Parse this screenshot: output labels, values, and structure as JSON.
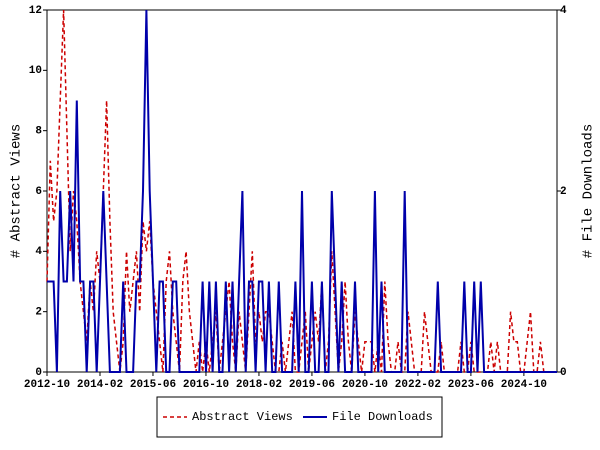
{
  "chart_data": {
    "type": "line",
    "categories": [
      "2012-10",
      null,
      null,
      null,
      null,
      null,
      null,
      null,
      null,
      null,
      null,
      null,
      null,
      null,
      null,
      null,
      "2014-02",
      null,
      null,
      null,
      null,
      null,
      null,
      null,
      null,
      null,
      null,
      null,
      null,
      null,
      null,
      null,
      "2015-06",
      null,
      null,
      null,
      null,
      null,
      null,
      null,
      null,
      null,
      null,
      null,
      null,
      null,
      null,
      null,
      "2016-10",
      null,
      null,
      null,
      null,
      null,
      null,
      null,
      null,
      null,
      null,
      null,
      null,
      null,
      null,
      null,
      "2018-02",
      null,
      null,
      null,
      null,
      null,
      null,
      null,
      null,
      null,
      null,
      null,
      null,
      null,
      null,
      null,
      "2019-06",
      null,
      null,
      null,
      null,
      null,
      null,
      null,
      null,
      null,
      null,
      null,
      null,
      null,
      null,
      null,
      "2020-10",
      null,
      null,
      null,
      null,
      null,
      null,
      null,
      null,
      null,
      null,
      null,
      null,
      null,
      null,
      null,
      "2022-02",
      null,
      null,
      null,
      null,
      null,
      null,
      null,
      null,
      null,
      null,
      null,
      null,
      null,
      null,
      null,
      "2023-06",
      null,
      null,
      null,
      null,
      null,
      null,
      null,
      null,
      null,
      null,
      null,
      null,
      null,
      null,
      null,
      "2024-10",
      null,
      null,
      null,
      null,
      null,
      null,
      null,
      null,
      null,
      null
    ],
    "series": [
      {
        "name": "Abstract Views",
        "color": "#cc0000",
        "dash": true,
        "axis": "y",
        "values": [
          3,
          7,
          5,
          6,
          9,
          12,
          8,
          4,
          6,
          5,
          3,
          2,
          1,
          3,
          2,
          4,
          3,
          6,
          9,
          5,
          2,
          1,
          0,
          1,
          4,
          2,
          3,
          4,
          2,
          5,
          4,
          5,
          3,
          2,
          1,
          0,
          3,
          4,
          2,
          1,
          0,
          3,
          4,
          2,
          1,
          0,
          1,
          0,
          1,
          0,
          1,
          2,
          0,
          1,
          2,
          3,
          1,
          0,
          2,
          1,
          0,
          2,
          4,
          1,
          2,
          1,
          2,
          2,
          1,
          0,
          0,
          1,
          0,
          1,
          2,
          0,
          0,
          1,
          2,
          0,
          1,
          2,
          1,
          3,
          0,
          1,
          4,
          2,
          0,
          1,
          3,
          1,
          0,
          2,
          1,
          0,
          1,
          1,
          1,
          0,
          1,
          0,
          3,
          1,
          0,
          0,
          1,
          0,
          0,
          2,
          1,
          0,
          0,
          0,
          2,
          1,
          0,
          0,
          0,
          1,
          0,
          0,
          0,
          0,
          0,
          1,
          0,
          0,
          1,
          0,
          0,
          0,
          0,
          0,
          1,
          0,
          1,
          0,
          0,
          0,
          2,
          1,
          1,
          0,
          0,
          1,
          2,
          0,
          0,
          1,
          0,
          0,
          0,
          0,
          0
        ]
      },
      {
        "name": "File Downloads",
        "color": "#0000aa",
        "dash": false,
        "axis": "y2",
        "values": [
          1,
          1,
          1,
          0,
          2,
          1,
          1,
          2,
          1,
          3,
          1,
          1,
          0,
          1,
          1,
          0,
          1,
          2,
          1,
          0,
          0,
          0,
          0,
          1,
          0,
          0,
          0,
          1,
          1,
          2,
          4,
          2,
          1,
          0,
          1,
          1,
          0,
          0,
          1,
          1,
          0,
          0,
          0,
          0,
          0,
          0,
          0,
          1,
          0,
          1,
          0,
          1,
          0,
          0,
          1,
          0,
          1,
          0,
          1,
          2,
          0,
          1,
          1,
          0,
          1,
          1,
          0,
          1,
          0,
          0,
          1,
          0,
          0,
          0,
          0,
          1,
          0,
          2,
          0,
          0,
          1,
          0,
          0,
          1,
          0,
          0,
          2,
          1,
          0,
          1,
          0,
          0,
          0,
          1,
          0,
          0,
          0,
          0,
          0,
          2,
          0,
          1,
          0,
          0,
          0,
          0,
          0,
          0,
          2,
          0,
          0,
          0,
          0,
          0,
          0,
          0,
          0,
          0,
          1,
          0,
          0,
          0,
          0,
          0,
          0,
          0,
          1,
          0,
          0,
          1,
          0,
          1,
          0,
          0,
          0,
          0,
          0,
          0,
          0,
          0,
          0,
          0,
          0,
          0,
          0,
          0,
          0,
          0,
          0,
          0,
          0,
          0,
          0,
          0,
          0
        ]
      }
    ],
    "ylabel": "# Abstract Views",
    "y2label": "# File Downloads",
    "ylim": [
      0,
      12
    ],
    "yticks": [
      0,
      2,
      4,
      6,
      8,
      10,
      12
    ],
    "y2lim": [
      0,
      4
    ],
    "y2ticks": [
      0,
      2,
      4
    ],
    "legend": "bottom"
  }
}
